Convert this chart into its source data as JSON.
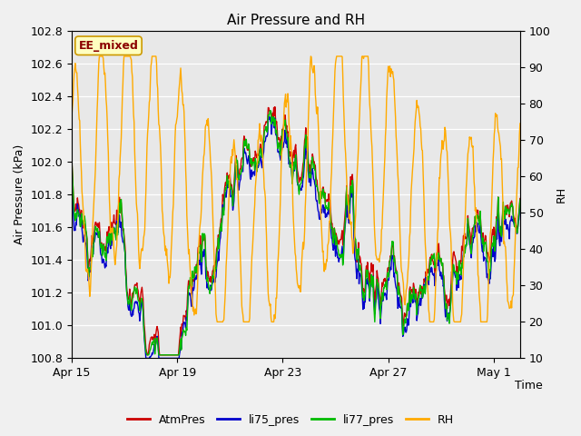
{
  "title": "Air Pressure and RH",
  "xlabel": "Time",
  "ylabel_left": "Air Pressure (kPa)",
  "ylabel_right": "RH",
  "ylim_left": [
    100.8,
    102.8
  ],
  "ylim_right": [
    10,
    100
  ],
  "bg_color": "#e8e8e8",
  "fig_color": "#f0f0f0",
  "line_colors": {
    "AtmPres": "#cc0000",
    "li75_pres": "#0000cc",
    "li77_pres": "#00bb00",
    "RH": "#ffaa00"
  },
  "line_widths": {
    "AtmPres": 1.0,
    "li75_pres": 1.0,
    "li77_pres": 1.0,
    "RH": 1.0
  },
  "legend_labels": [
    "AtmPres",
    "li75_pres",
    "li77_pres",
    "RH"
  ],
  "annotation_text": "EE_mixed",
  "annotation_color": "#8B0000",
  "annotation_bg": "#ffffc0",
  "annotation_border": "#cc9900",
  "x_tick_labels": [
    "Apr 15",
    "Apr 19",
    "Apr 23",
    "Apr 27",
    "May 1"
  ],
  "x_tick_positions": [
    0,
    4,
    8,
    12,
    16
  ],
  "num_points": 800,
  "title_fontsize": 11,
  "axis_fontsize": 9,
  "tick_fontsize": 9,
  "legend_fontsize": 9
}
